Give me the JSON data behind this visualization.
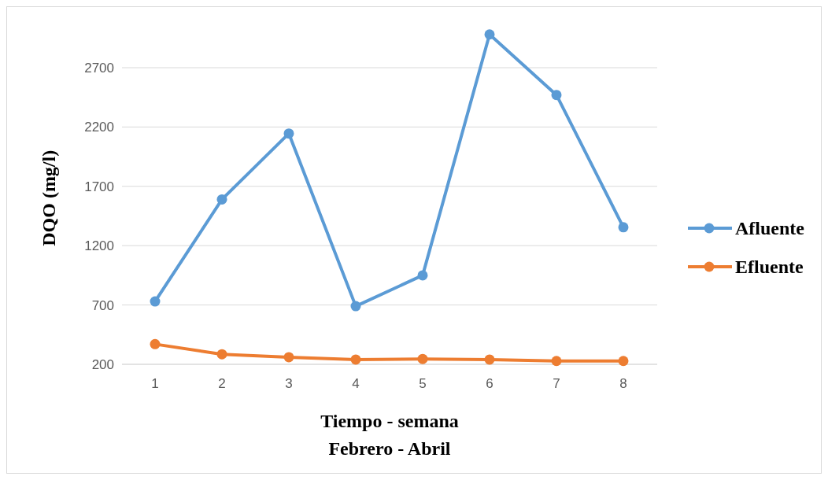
{
  "chart_data": {
    "type": "line",
    "xlabel": "Tiempo - semana\nFebrero - Abril",
    "ylabel": "DQO (mg/l)",
    "categories": [
      "1",
      "2",
      "3",
      "4",
      "5",
      "6",
      "7",
      "8"
    ],
    "series": [
      {
        "name": "Afluente",
        "color": "#5b9bd5",
        "values": [
          730,
          1590,
          2145,
          690,
          950,
          2980,
          2470,
          1355
        ]
      },
      {
        "name": "Efluente",
        "color": "#ed7d31",
        "values": [
          370,
          285,
          260,
          240,
          245,
          240,
          228,
          228
        ]
      }
    ],
    "ylim": [
      200,
      3200
    ],
    "yticks": [
      200,
      700,
      1200,
      1700,
      2200,
      2700
    ],
    "grid": "y",
    "legend": "right",
    "marker": "circle",
    "line_style": "solid"
  }
}
